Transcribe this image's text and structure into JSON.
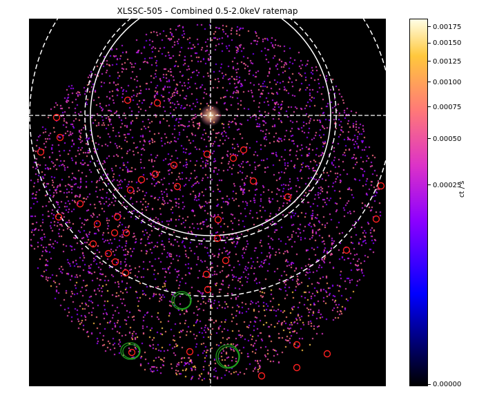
{
  "figure": {
    "title": "XLSSC-505 - Combined 0.5-2.0keV ratemap"
  },
  "colorbar": {
    "label": "ct / s",
    "ticks": [
      "0.00175",
      "0.00150",
      "0.00125",
      "0.00100",
      "0.00075",
      "0.00050",
      "0.00025",
      "0.00000"
    ],
    "tick_values": [
      0.00175,
      0.0015,
      0.00125,
      0.001,
      0.00075,
      0.0005,
      0.00025,
      0.0
    ],
    "max": 0.0019,
    "scale": "power"
  },
  "colors": {
    "background": "#000000",
    "crosshair": "#ffffff",
    "source_region": "#ff2020",
    "extended_region": "#1fa01f"
  }
}
